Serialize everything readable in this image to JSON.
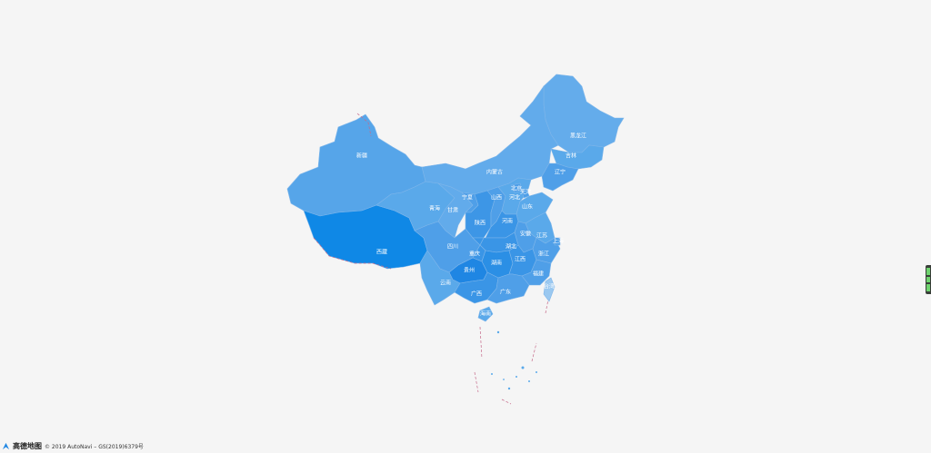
{
  "colors": {
    "background": "#f5f5f5",
    "province_light": "#5aa9ea",
    "province_mid": "#4f9fe8",
    "province_dark": "#1f86e3",
    "tibet": "#0f88e6",
    "label": "#ffffff",
    "border_dash": "#c56a8a"
  },
  "provinces": [
    {
      "name": "黑龙江",
      "color": "#64aceb"
    },
    {
      "name": "吉林",
      "color": "#5aa9ea"
    },
    {
      "name": "辽宁",
      "color": "#4f9fe8"
    },
    {
      "name": "内蒙古",
      "color": "#62abeb"
    },
    {
      "name": "新疆",
      "color": "#56a5e9"
    },
    {
      "name": "西藏",
      "color": "#0f88e6"
    },
    {
      "name": "青海",
      "color": "#5aa9ea"
    },
    {
      "name": "甘肃",
      "color": "#62abeb"
    },
    {
      "name": "宁夏",
      "color": "#4f9fe8"
    },
    {
      "name": "陕西",
      "color": "#3d96e6"
    },
    {
      "name": "山西",
      "color": "#4f9fe8"
    },
    {
      "name": "河北",
      "color": "#5aa9ea"
    },
    {
      "name": "北京",
      "color": "#4f9fe8"
    },
    {
      "name": "天津",
      "color": "#4f9fe8"
    },
    {
      "name": "山东",
      "color": "#5aa9ea"
    },
    {
      "name": "河南",
      "color": "#3a95e6"
    },
    {
      "name": "江苏",
      "color": "#5aa9ea"
    },
    {
      "name": "安徽",
      "color": "#4f9fe8"
    },
    {
      "name": "湖北",
      "color": "#3a95e6"
    },
    {
      "name": "四川",
      "color": "#4f9fe8"
    },
    {
      "name": "重庆",
      "color": "#3a95e6"
    },
    {
      "name": "湖南",
      "color": "#2b8fe5"
    },
    {
      "name": "江西",
      "color": "#3a95e6"
    },
    {
      "name": "浙江",
      "color": "#4f9fe8"
    },
    {
      "name": "福建",
      "color": "#4f9fe8"
    },
    {
      "name": "贵州",
      "color": "#1f86e3"
    },
    {
      "name": "云南",
      "color": "#5aa9ea"
    },
    {
      "name": "广西",
      "color": "#3a95e6"
    },
    {
      "name": "广东",
      "color": "#4f9fe8"
    },
    {
      "name": "海南",
      "color": "#5aa9ea"
    },
    {
      "name": "台湾",
      "color": "#9ac8f0"
    },
    {
      "name": "上海",
      "color": "#4f9fe8"
    }
  ],
  "attribution": {
    "logo_text": "高德地图",
    "copyright": "© 2019 AutoNavi – GS(2019)6379号"
  },
  "side_control_icon": "layer-toggle-icon"
}
